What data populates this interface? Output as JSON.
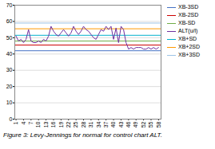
{
  "chart_data": {
    "type": "line",
    "title": "Figure 3: Levy-Jennings for normal for control chart ALT.",
    "x": [
      1,
      2,
      3,
      4,
      5,
      6,
      7,
      8,
      9,
      10,
      11,
      12,
      13,
      14,
      15,
      16,
      17,
      18,
      19,
      20,
      21,
      22,
      23,
      24,
      25,
      26,
      27,
      28,
      29,
      30,
      31,
      32,
      33,
      34,
      35,
      36,
      37,
      38,
      39,
      40,
      41,
      42,
      43,
      44,
      45,
      46,
      47,
      48,
      49,
      50,
      51,
      52,
      53,
      54,
      55,
      56,
      57,
      58
    ],
    "series": [
      {
        "name": "XB-3SD",
        "type": "hline",
        "color": "#4472c4",
        "value": 42.0
      },
      {
        "name": "XB-2SD",
        "type": "hline",
        "color": "#cc0000",
        "value": 45.5
      },
      {
        "name": "XB-SD",
        "type": "hline",
        "color": "#70ad47",
        "value": 48.0
      },
      {
        "name": "ALT(u/l)",
        "type": "line",
        "color": "#7030a0",
        "values": [
          51,
          48,
          49,
          47,
          49,
          55,
          48,
          47,
          47,
          48,
          47,
          49,
          48,
          51,
          57,
          54,
          52,
          51,
          53,
          55,
          53,
          51,
          53,
          57,
          54,
          52,
          54,
          57,
          55,
          54,
          52,
          50,
          49,
          52,
          55,
          54,
          57,
          55,
          57,
          49,
          56,
          47,
          57,
          55,
          47,
          43,
          44,
          43,
          44,
          44,
          44,
          43,
          43,
          44,
          43,
          44,
          43,
          44
        ]
      },
      {
        "name": "XB+SD",
        "type": "hline",
        "color": "#00b0cc",
        "value": 51.5
      },
      {
        "name": "XB+2SD",
        "type": "hline",
        "color": "#ff9900",
        "value": 55.5
      },
      {
        "name": "XB+3SD",
        "type": "hline",
        "color": "#9dc3e6",
        "value": 59.0
      }
    ],
    "xlim": [
      0.5,
      59
    ],
    "ylim": [
      0,
      70
    ],
    "xticks": [
      1,
      4,
      7,
      10,
      13,
      16,
      19,
      22,
      25,
      28,
      31,
      34,
      37,
      40,
      43,
      46,
      49,
      52,
      55,
      58
    ],
    "yticks": [
      0,
      10,
      20,
      30,
      40,
      50,
      60,
      70
    ],
    "grid": "y",
    "legend": "right"
  }
}
